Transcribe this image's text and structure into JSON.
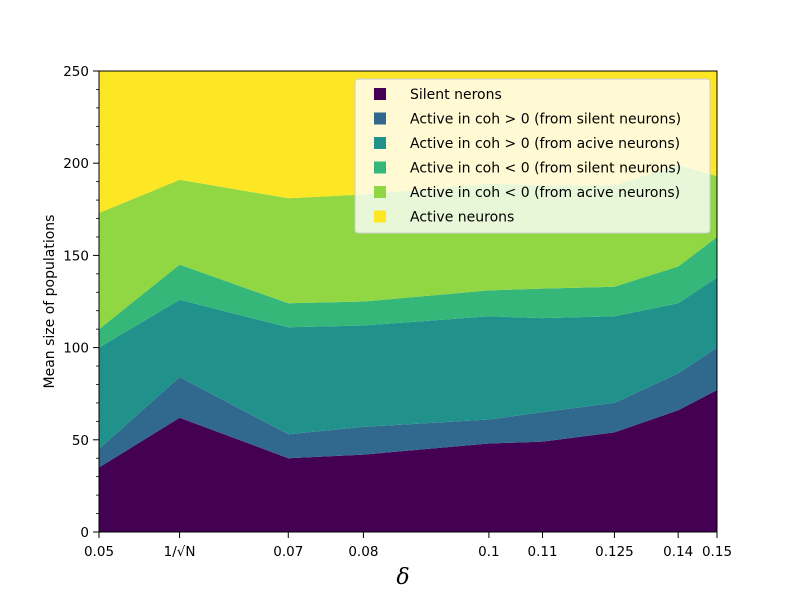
{
  "chart_data": {
    "type": "area",
    "stacked": true,
    "xlabel": "δ",
    "ylabel": "Mean size of populations",
    "x_scale": "log",
    "xlim": [
      0.05,
      0.15
    ],
    "ylim": [
      0,
      250
    ],
    "x": [
      0.05,
      0.0577,
      0.07,
      0.08,
      0.1,
      0.11,
      0.125,
      0.14,
      0.15
    ],
    "xticks": [
      {
        "value": 0.05,
        "label": "0.05"
      },
      {
        "value": 0.0577,
        "label": "1/√N"
      },
      {
        "value": 0.07,
        "label": "0.07"
      },
      {
        "value": 0.08,
        "label": "0.08"
      },
      {
        "value": 0.1,
        "label": "0.1"
      },
      {
        "value": 0.11,
        "label": "0.11"
      },
      {
        "value": 0.125,
        "label": "0.125"
      },
      {
        "value": 0.14,
        "label": "0.14"
      },
      {
        "value": 0.15,
        "label": "0.15"
      }
    ],
    "yticks": [
      0,
      50,
      100,
      150,
      200,
      250
    ],
    "legend_position": "top-right",
    "series": [
      {
        "name": "Silent nerons",
        "color": "#440154",
        "values": [
          35,
          62,
          40,
          42,
          48,
          49,
          54,
          66,
          77
        ]
      },
      {
        "name": "Active in coh > 0 (from silent neurons)",
        "color": "#31688e",
        "values": [
          10,
          22,
          13,
          15,
          13,
          16,
          16,
          20,
          23
        ]
      },
      {
        "name": "Active in coh > 0 (from acive neurons)",
        "color": "#21918c",
        "values": [
          55,
          42,
          58,
          55,
          56,
          51,
          47,
          38,
          38
        ]
      },
      {
        "name": "Active in coh < 0 (from silent neurons)",
        "color": "#35b779",
        "values": [
          10,
          19,
          13,
          13,
          14,
          16,
          16,
          20,
          22
        ]
      },
      {
        "name": "Active in coh < 0 (from acive neurons)",
        "color": "#90d743",
        "values": [
          63,
          46,
          57,
          58,
          58,
          56,
          55,
          55,
          33
        ]
      },
      {
        "name": "Active neurons",
        "color": "#fde725",
        "values": [
          77,
          59,
          69,
          67,
          61,
          62,
          62,
          51,
          57
        ]
      }
    ]
  }
}
